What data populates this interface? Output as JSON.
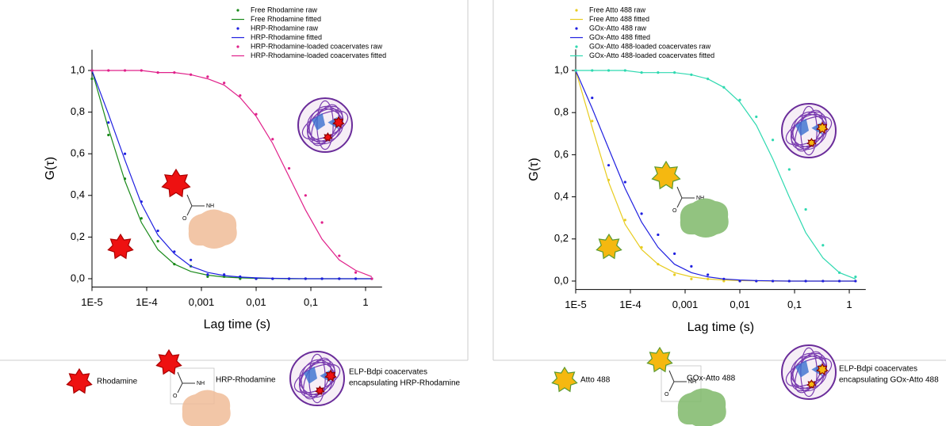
{
  "chart_data": [
    {
      "type": "line",
      "xscale": "log",
      "x_label": "Lag time (s)",
      "y_label": "G(τ)",
      "xlim": [
        1e-05,
        2
      ],
      "ylim": [
        -0.04,
        1.1
      ],
      "xticks": [
        {
          "value": 1e-05,
          "label": "1E-5"
        },
        {
          "value": 0.0001,
          "label": "1E-4"
        },
        {
          "value": 0.001,
          "label": "0,001"
        },
        {
          "value": 0.01,
          "label": "0,01"
        },
        {
          "value": 0.1,
          "label": "0,1"
        },
        1
      ],
      "yticks": [
        {
          "value": 0,
          "label": "0,0"
        },
        {
          "value": 0.2,
          "label": "0,2"
        },
        {
          "value": 0.4,
          "label": "0,4"
        },
        {
          "value": 0.6,
          "label": "0,6"
        },
        {
          "value": 0.8,
          "label": "0,8"
        },
        {
          "value": 1,
          "label": "1,0"
        }
      ],
      "x": [
        1e-05,
        2e-05,
        4e-05,
        8e-05,
        0.00016,
        0.00032,
        0.00064,
        0.0013,
        0.0026,
        0.0051,
        0.01,
        0.02,
        0.04,
        0.08,
        0.16,
        0.33,
        0.66,
        1.3
      ],
      "series": [
        {
          "name": "Free Rhodamine raw",
          "mode": "markers",
          "color": "#1a8a1a",
          "values": [
            0.96,
            0.69,
            0.48,
            0.29,
            0.18,
            0.07,
            0.06,
            0.01,
            0.01,
            0,
            0,
            0,
            0,
            0,
            0,
            0,
            0,
            0
          ]
        },
        {
          "name": "Free Rhodamine fitted",
          "mode": "line",
          "color": "#1a8a1a",
          "values": [
            1.0,
            0.72,
            0.47,
            0.27,
            0.14,
            0.07,
            0.035,
            0.017,
            0.008,
            0.004,
            0.002,
            0.001,
            0,
            0,
            0,
            0,
            0,
            0
          ]
        },
        {
          "name": "HRP-Rhodamine raw",
          "mode": "markers",
          "color": "#1f1fe0",
          "values": [
            1.0,
            0.75,
            0.6,
            0.37,
            0.23,
            0.13,
            0.09,
            0.02,
            0.02,
            0.01,
            0,
            0,
            0,
            0,
            0,
            0,
            0,
            0
          ]
        },
        {
          "name": "HRP-Rhodamine fitted",
          "mode": "line",
          "color": "#1f1fe0",
          "values": [
            1.0,
            0.79,
            0.57,
            0.36,
            0.21,
            0.12,
            0.06,
            0.03,
            0.015,
            0.008,
            0.004,
            0.002,
            0.001,
            0,
            0,
            0,
            0,
            0
          ]
        },
        {
          "name": "HRP-Rhodamine-loaded coacervates raw",
          "mode": "markers",
          "color": "#e0208a",
          "values": [
            1.0,
            1.0,
            1.0,
            1.0,
            0.99,
            0.99,
            0.98,
            0.97,
            0.94,
            0.88,
            0.79,
            0.67,
            0.53,
            0.4,
            0.27,
            0.11,
            0.03,
            0
          ]
        },
        {
          "name": "HRP-Rhodamine-loaded coacervates fitted",
          "mode": "line",
          "color": "#e0208a",
          "values": [
            1.0,
            1.0,
            1.0,
            1.0,
            0.99,
            0.99,
            0.98,
            0.96,
            0.93,
            0.87,
            0.78,
            0.65,
            0.49,
            0.33,
            0.19,
            0.09,
            0.04,
            0.01
          ]
        }
      ],
      "key_labels": [
        [
          "Rhodamine"
        ],
        [
          "HRP-Rhodamine"
        ],
        [
          "ELP-Bdpi coacervates",
          "encapsulating HRP-Rhodamine"
        ]
      ]
    },
    {
      "type": "line",
      "xscale": "log",
      "x_label": "Lag time (s)",
      "y_label": "G(τ)",
      "xlim": [
        1e-05,
        2
      ],
      "ylim": [
        -0.04,
        1.1
      ],
      "xticks": [
        {
          "value": 1e-05,
          "label": "1E-5"
        },
        {
          "value": 0.0001,
          "label": "1E-4"
        },
        {
          "value": 0.001,
          "label": "0,001"
        },
        {
          "value": 0.01,
          "label": "0,01"
        },
        {
          "value": 0.1,
          "label": "0,1"
        },
        1
      ],
      "yticks": [
        {
          "value": 0,
          "label": "0,0"
        },
        {
          "value": 0.2,
          "label": "0,2"
        },
        {
          "value": 0.4,
          "label": "0,4"
        },
        {
          "value": 0.6,
          "label": "0,6"
        },
        {
          "value": 0.8,
          "label": "0,8"
        },
        {
          "value": 1,
          "label": "1,0"
        }
      ],
      "x": [
        1e-05,
        2e-05,
        4e-05,
        8e-05,
        0.00016,
        0.00032,
        0.00064,
        0.0013,
        0.0026,
        0.0051,
        0.01,
        0.02,
        0.04,
        0.08,
        0.16,
        0.33,
        0.66,
        1.3
      ],
      "series": [
        {
          "name": "Free Atto 488 raw",
          "mode": "markers",
          "color": "#e8cc20",
          "values": [
            1.0,
            0.76,
            0.48,
            0.29,
            0.16,
            0.08,
            0.03,
            0.01,
            0.01,
            0,
            0,
            0,
            0,
            0,
            0,
            0,
            0,
            0
          ]
        },
        {
          "name": "Free Atto 488 fitted",
          "mode": "line",
          "color": "#e8cc20",
          "values": [
            1.0,
            0.73,
            0.47,
            0.27,
            0.15,
            0.08,
            0.04,
            0.02,
            0.01,
            0.005,
            0.002,
            0.001,
            0,
            0,
            0,
            0,
            0,
            0
          ]
        },
        {
          "name": "GOx-Atto 488 raw",
          "mode": "markers",
          "color": "#1f1fe0",
          "values": [
            1.0,
            0.87,
            0.55,
            0.47,
            0.32,
            0.22,
            0.13,
            0.07,
            0.03,
            0.01,
            0,
            0,
            0,
            0,
            0,
            0,
            0,
            0
          ]
        },
        {
          "name": "GOx-Atto 488 fitted",
          "mode": "line",
          "color": "#1f1fe0",
          "values": [
            1.0,
            0.82,
            0.63,
            0.44,
            0.28,
            0.16,
            0.08,
            0.04,
            0.02,
            0.01,
            0.005,
            0.002,
            0.001,
            0,
            0,
            0,
            0,
            0
          ]
        },
        {
          "name": "GOx-Atto 488-loaded coacervates raw",
          "mode": "markers",
          "color": "#2fd9b0",
          "values": [
            1.0,
            1.0,
            1.0,
            1.0,
            0.99,
            0.99,
            0.99,
            0.98,
            0.96,
            0.92,
            0.86,
            0.78,
            0.67,
            0.53,
            0.34,
            0.17,
            0.04,
            0.02
          ]
        },
        {
          "name": "GOx-Atto 488-loaded coacervates fitted",
          "mode": "line",
          "color": "#2fd9b0",
          "values": [
            1.0,
            1.0,
            1.0,
            1.0,
            0.99,
            0.99,
            0.99,
            0.98,
            0.96,
            0.92,
            0.85,
            0.74,
            0.58,
            0.4,
            0.23,
            0.11,
            0.04,
            0.01
          ]
        }
      ],
      "key_labels": [
        [
          "Atto 488"
        ],
        [
          "GOx-Atto 488"
        ],
        [
          "ELP-Bdpi coacervates",
          "encapsulating GOx-Atto 488"
        ]
      ]
    }
  ]
}
